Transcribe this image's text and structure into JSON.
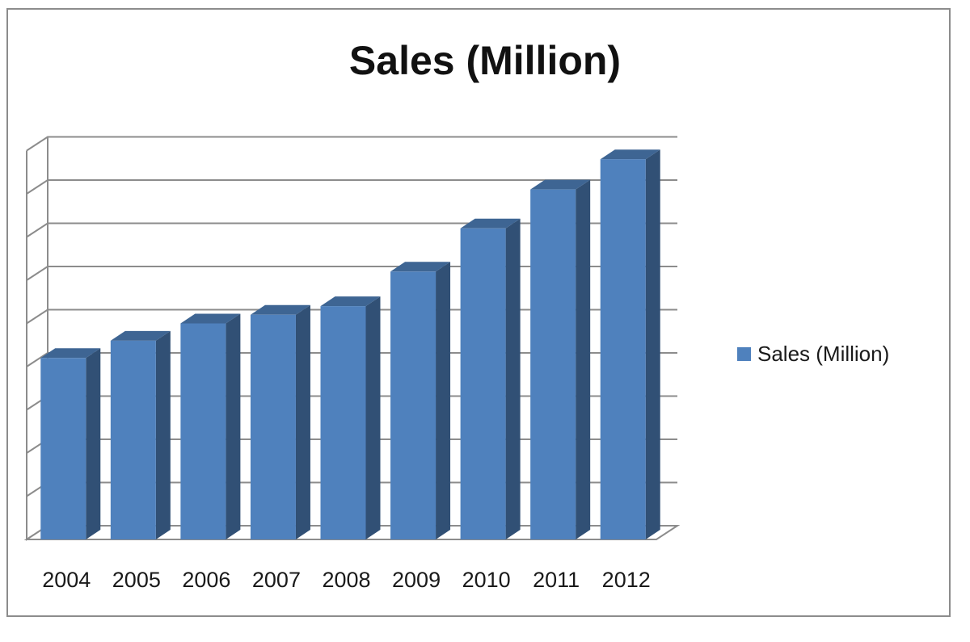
{
  "chart_data": {
    "type": "bar",
    "style": "3d-column",
    "title": "Sales (Million)",
    "xlabel": "",
    "ylabel": "",
    "categories": [
      "2004",
      "2005",
      "2006",
      "2007",
      "2008",
      "2009",
      "2010",
      "2011",
      "2012"
    ],
    "series": [
      {
        "name": "Sales (Million)",
        "values": [
          4.2,
          4.6,
          5.0,
          5.2,
          5.4,
          6.2,
          7.2,
          8.1,
          8.8
        ],
        "color": "#4f81bd"
      }
    ],
    "ylim": [
      0,
      9
    ],
    "y_tick_labels_shown": false,
    "grid": true,
    "legend_position": "right"
  }
}
